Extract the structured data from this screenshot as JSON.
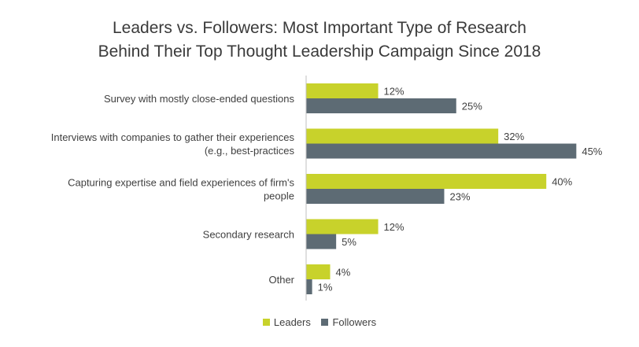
{
  "colors": {
    "leaders": "#c8d22b",
    "followers": "#5d6b74",
    "axis": "#bfbfbf"
  },
  "chart_data": {
    "type": "bar",
    "orientation": "horizontal",
    "title": "Leaders vs. Followers: Most Important Type of Research Behind Their Top Thought Leadership Campaign Since 2018",
    "title_lines": [
      "Leaders vs. Followers: Most Important Type of Research",
      "Behind Their Top Thought Leadership Campaign Since 2018"
    ],
    "categories": [
      [
        "Survey with mostly close-ended questions"
      ],
      [
        "Interviews with companies to gather their experiences",
        "(e.g., best-practices"
      ],
      [
        "Capturing expertise and field experiences of firm's",
        "people"
      ],
      [
        "Secondary research"
      ],
      [
        "Other"
      ]
    ],
    "series": [
      {
        "name": "Leaders",
        "values": [
          12,
          32,
          40,
          12,
          4
        ],
        "labels": [
          "12%",
          "32%",
          "40%",
          "12%",
          "4%"
        ]
      },
      {
        "name": "Followers",
        "values": [
          25,
          45,
          23,
          5,
          1
        ],
        "labels": [
          "25%",
          "45%",
          "23%",
          "5%",
          "1%"
        ]
      }
    ],
    "value_unit": "%",
    "legend_position": "bottom-center",
    "grid": false
  }
}
